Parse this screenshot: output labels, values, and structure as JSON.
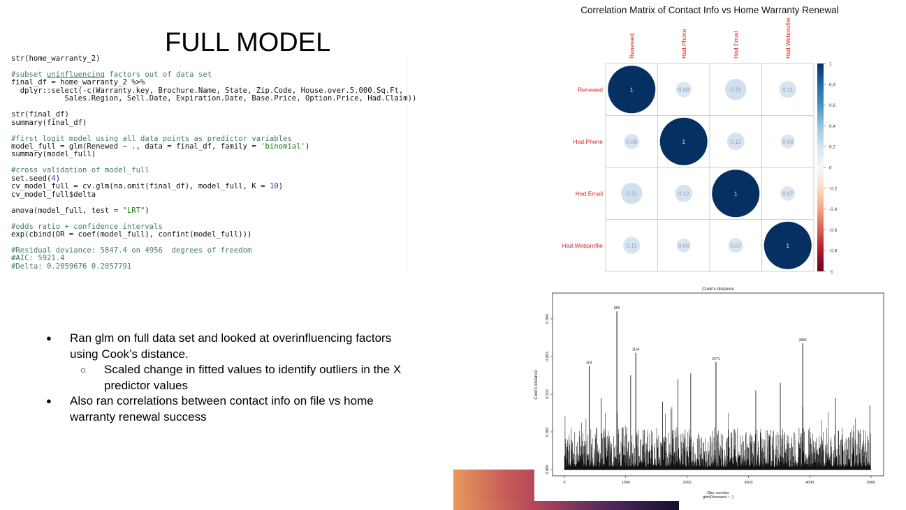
{
  "slide": {
    "title": "FULL MODEL"
  },
  "code": {
    "lines": [
      [
        {
          "t": "str(home_warranty_2)",
          "c": ""
        }
      ],
      [],
      [
        {
          "t": "#subset ",
          "c": "cm"
        },
        {
          "t": "uninfluencing",
          "c": "cm ul"
        },
        {
          "t": " factors out of data set",
          "c": "cm"
        }
      ],
      [
        {
          "t": "final_df = home_warranty_2 %>%",
          "c": ""
        }
      ],
      [
        {
          "t": "  dplyr::select(-c(Warranty.key, Brochure.Name, State, Zip.Code, House.over.5.000.Sq.Ft,",
          "c": ""
        }
      ],
      [
        {
          "t": "            Sales.Region, Sell.Date, Expiration.Date, Base.Price, Option.Price, Had.Claim))",
          "c": ""
        }
      ],
      [],
      [
        {
          "t": "str(final_df)",
          "c": ""
        }
      ],
      [
        {
          "t": "summary(final_df)",
          "c": ""
        }
      ],
      [],
      [
        {
          "t": "#first logit model using all data points as predictor variables",
          "c": "cm"
        }
      ],
      [
        {
          "t": "model_full = glm(Renewed ~ ., data = final_df, family = ",
          "c": ""
        },
        {
          "t": "'binomial'",
          "c": "st"
        },
        {
          "t": ")",
          "c": ""
        }
      ],
      [
        {
          "t": "summary(model_full)",
          "c": ""
        }
      ],
      [],
      [
        {
          "t": "#cross validation of model_full",
          "c": "cm"
        }
      ],
      [
        {
          "t": "set.seed(",
          "c": ""
        },
        {
          "t": "4",
          "c": "nm"
        },
        {
          "t": ")",
          "c": ""
        }
      ],
      [
        {
          "t": "cv_model_full = cv.glm(na.omit(final_df), model_full, K = ",
          "c": ""
        },
        {
          "t": "10",
          "c": "nm"
        },
        {
          "t": ")",
          "c": ""
        }
      ],
      [
        {
          "t": "cv_model_full$delta",
          "c": ""
        }
      ],
      [],
      [
        {
          "t": "anova(model_full, test = ",
          "c": ""
        },
        {
          "t": "\"LRT\"",
          "c": "st"
        },
        {
          "t": ")",
          "c": ""
        }
      ],
      [],
      [
        {
          "t": "#odds ratio + confidence intervals",
          "c": "cm"
        }
      ],
      [
        {
          "t": "exp(cbind(OR = coef(model_full), confint(model_full)))",
          "c": ""
        }
      ],
      [],
      [
        {
          "t": "#Residual deviance: 5847.4 on 4956  degrees of freedom",
          "c": "cm"
        }
      ],
      [
        {
          "t": "#AIC: 5921.4",
          "c": "cm"
        }
      ],
      [
        {
          "t": "#Delta: 0.2059676 0.2057791",
          "c": "cm"
        }
      ]
    ]
  },
  "bullets": [
    {
      "level": 1,
      "marker": "●",
      "text": "Ran glm on full data set and looked at overinfluencing factors using Cook’s distance."
    },
    {
      "level": 2,
      "marker": "○",
      "text": "Scaled change in fitted values to identify outliers in the X predictor values"
    },
    {
      "level": 1,
      "marker": "●",
      "text": "Also ran correlations between contact info on file vs home warranty renewal success"
    }
  ],
  "chart_data": [
    {
      "type": "heatmap",
      "title": "Correlation Matrix of Contact Info vs Home Warranty Renewal",
      "variables": [
        "Renewed",
        "Had.Phone",
        "Had.Email",
        "Had.Webprofile"
      ],
      "matrix": [
        [
          1,
          0.08,
          0.21,
          0.11
        ],
        [
          0.08,
          1,
          0.12,
          0.06
        ],
        [
          0.21,
          0.12,
          1,
          0.07
        ],
        [
          0.11,
          0.06,
          0.07,
          1
        ]
      ],
      "value_labels": [
        [
          "1",
          "0.08",
          "0.21",
          "0.11"
        ],
        [
          "0.08",
          "1",
          "0.12",
          "0.06"
        ],
        [
          "0.21",
          "0.12",
          "1",
          "0.07"
        ],
        [
          "0.11",
          "0.06",
          "0.07",
          "1"
        ]
      ],
      "colorbar": {
        "ticks": [
          1,
          0.8,
          0.6,
          0.4,
          0.2,
          0,
          -0.2,
          -0.4,
          -0.6,
          -0.8,
          -1
        ],
        "tick_labels": [
          "1",
          "0.8",
          "0.6",
          "0.4",
          "0.2",
          "0",
          "-0.2",
          "-0.4",
          "-0.6",
          "-0.8",
          "-1"
        ],
        "range": [
          -1,
          1
        ]
      },
      "label_color": "#e02020",
      "low_color": "#67001f",
      "high_color": "#053061"
    },
    {
      "type": "bar",
      "title": "Cook's distance",
      "xlabel": "Obs. number",
      "sublabel": "glm(Renewed ~ .)",
      "ylabel": "Cook's distance",
      "xlim": [
        0,
        5000
      ],
      "ylim": [
        0,
        0.0045
      ],
      "x_ticks": [
        0,
        1000,
        2000,
        3000,
        4000,
        5000
      ],
      "x_tick_labels": [
        "0",
        "1000",
        "2000",
        "3000",
        "4000",
        "5000"
      ],
      "y_ticks": [
        0,
        0.001,
        0.002,
        0.003,
        0.004
      ],
      "y_tick_labels": [
        "0.000",
        "0.001",
        "0.002",
        "0.003",
        "0.004"
      ],
      "n_obs": 4994,
      "labeled_points": [
        {
          "x": 404,
          "y": 0.00275,
          "label": "404"
        },
        {
          "x": 855,
          "y": 0.0042,
          "label": "855"
        },
        {
          "x": 1164,
          "y": 0.0031,
          "label": "1164"
        },
        {
          "x": 2471,
          "y": 0.00285,
          "label": "2471"
        },
        {
          "x": 3886,
          "y": 0.00335,
          "label": "3886"
        }
      ],
      "notable_spikes": [
        {
          "x": 1080,
          "y": 0.0025
        },
        {
          "x": 1850,
          "y": 0.0024
        },
        {
          "x": 2060,
          "y": 0.00255
        },
        {
          "x": 3120,
          "y": 0.0021
        },
        {
          "x": 3520,
          "y": 0.0023
        },
        {
          "x": 4420,
          "y": 0.0019
        },
        {
          "x": 4980,
          "y": 0.0017
        },
        {
          "x": 1600,
          "y": 0.0018
        },
        {
          "x": 600,
          "y": 0.0019
        }
      ]
    }
  ]
}
